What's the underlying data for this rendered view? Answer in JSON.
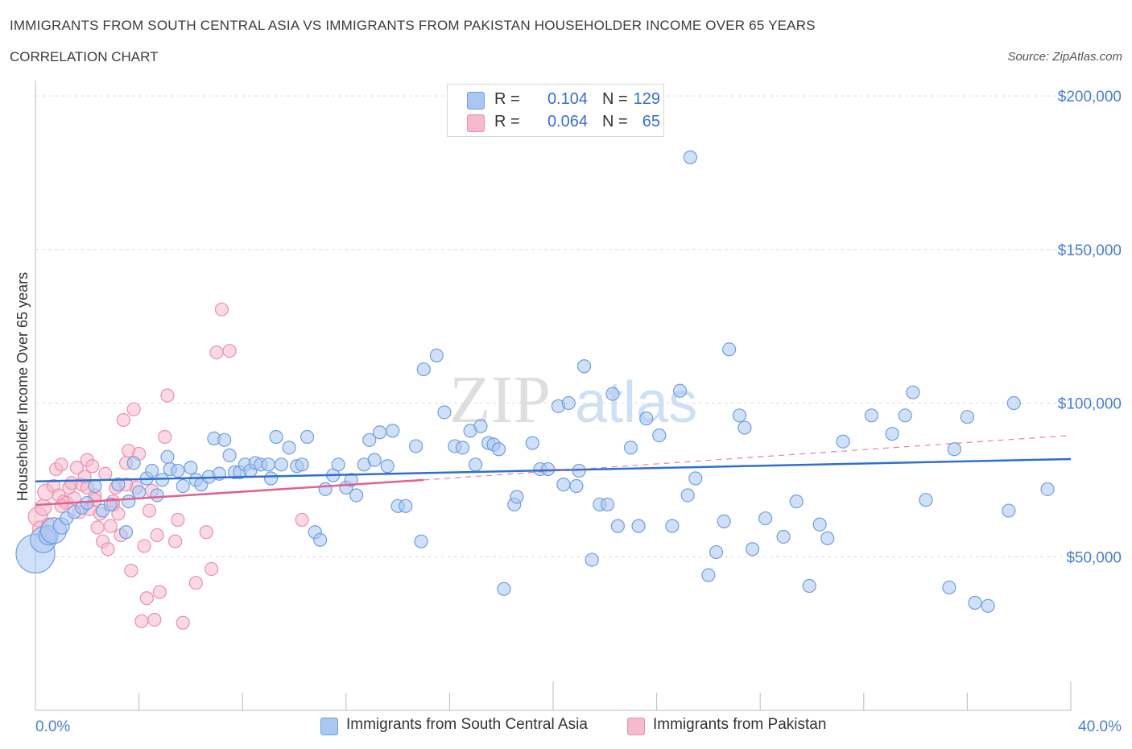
{
  "header": {
    "title": "IMMIGRANTS FROM SOUTH CENTRAL ASIA VS IMMIGRANTS FROM PAKISTAN HOUSEHOLDER INCOME OVER 65 YEARS",
    "subtitle": "CORRELATION CHART",
    "source": "Source: ZipAtlas.com"
  },
  "watermark": "ZIPatlas",
  "legend": {
    "rows": [
      {
        "r_label": "R =",
        "r_value": "0.104",
        "n_label": "N =",
        "n_value": "129",
        "color": "#a9c7f3"
      },
      {
        "r_label": "R =",
        "r_value": "0.064",
        "n_label": "N =",
        "n_value": "65",
        "color": "#f6b9cd"
      }
    ]
  },
  "bottom_legend": [
    {
      "label": "Immigrants from South Central Asia",
      "color": "#a9c7f3"
    },
    {
      "label": "Immigrants from Pakistan",
      "color": "#f6b9cd"
    }
  ],
  "colors": {
    "blue_fill": "#a9c7f3",
    "blue_stroke": "#6f9ee0",
    "blue_line": "#2f6fd0",
    "pink_fill": "#f6b9cd",
    "pink_stroke": "#ec8fae",
    "pink_line": "#e2608f",
    "tick_text": "#4a7fd0",
    "grid": "#dddddd"
  },
  "chart_data": {
    "type": "scatter",
    "title": "IMMIGRANTS FROM SOUTH CENTRAL ASIA VS IMMIGRANTS FROM PAKISTAN HOUSEHOLDER INCOME OVER 65 YEARS",
    "xlabel": "",
    "ylabel": "Householder Income Over 65 years",
    "xlim": [
      0,
      40
    ],
    "ylim": [
      0,
      205000
    ],
    "x_tick_labels": [
      "0.0%",
      "40.0%"
    ],
    "y_ticks": [
      50000,
      100000,
      150000,
      200000
    ],
    "y_tick_labels": [
      "$50,000",
      "$100,000",
      "$150,000",
      "$200,000"
    ],
    "grid": true,
    "legend_position": "top-center",
    "series": [
      {
        "name": "Immigrants from South Central Asia",
        "color": "#a9c7f3",
        "points": [
          [
            0.0,
            51000,
            24
          ],
          [
            0.3,
            55500,
            16
          ],
          [
            0.5,
            57000,
            12
          ],
          [
            0.7,
            58500,
            16
          ],
          [
            1.0,
            60000,
            10
          ],
          [
            1.2,
            62500,
            8
          ],
          [
            1.5,
            64500,
            8
          ],
          [
            1.8,
            66000,
            8
          ],
          [
            2.0,
            67500,
            8
          ],
          [
            2.3,
            73000,
            8
          ],
          [
            2.6,
            65000,
            8
          ],
          [
            2.9,
            67000,
            8
          ],
          [
            3.2,
            73500,
            8
          ],
          [
            3.5,
            58000,
            8
          ],
          [
            3.6,
            68000,
            8
          ],
          [
            3.8,
            80500,
            8
          ],
          [
            4.0,
            71000,
            8
          ],
          [
            4.3,
            75500,
            8
          ],
          [
            4.5,
            78000,
            8
          ],
          [
            4.7,
            70000,
            8
          ],
          [
            4.9,
            75000,
            8
          ],
          [
            5.1,
            82500,
            8
          ],
          [
            5.2,
            78500,
            8
          ],
          [
            5.5,
            78000,
            8
          ],
          [
            5.7,
            73000,
            8
          ],
          [
            6.0,
            79000,
            8
          ],
          [
            6.2,
            75000,
            8
          ],
          [
            6.4,
            73500,
            8
          ],
          [
            6.7,
            76000,
            8
          ],
          [
            6.9,
            88500,
            8
          ],
          [
            7.1,
            77000,
            8
          ],
          [
            7.3,
            88000,
            8
          ],
          [
            7.5,
            83000,
            8
          ],
          [
            7.7,
            77500,
            8
          ],
          [
            7.9,
            77500,
            8
          ],
          [
            8.1,
            80000,
            8
          ],
          [
            8.3,
            78000,
            8
          ],
          [
            8.5,
            80500,
            8
          ],
          [
            8.7,
            80000,
            8
          ],
          [
            9.0,
            80000,
            8
          ],
          [
            9.3,
            89000,
            8
          ],
          [
            9.5,
            80000,
            8
          ],
          [
            9.8,
            85500,
            8
          ],
          [
            10.1,
            79500,
            8
          ],
          [
            10.3,
            80000,
            8
          ],
          [
            10.5,
            89000,
            8
          ],
          [
            10.8,
            58000,
            8
          ],
          [
            11.0,
            55500,
            8
          ],
          [
            11.2,
            72000,
            8
          ],
          [
            11.5,
            76500,
            8
          ],
          [
            11.7,
            80000,
            8
          ],
          [
            12.0,
            72500,
            8
          ],
          [
            12.2,
            75000,
            8
          ],
          [
            12.4,
            70000,
            8
          ],
          [
            12.7,
            80000,
            8
          ],
          [
            12.9,
            88000,
            8
          ],
          [
            13.1,
            81500,
            8
          ],
          [
            13.3,
            90500,
            8
          ],
          [
            13.6,
            79500,
            8
          ],
          [
            13.8,
            91000,
            8
          ],
          [
            14.0,
            66500,
            8
          ],
          [
            14.3,
            66500,
            8
          ],
          [
            14.7,
            86000,
            8
          ],
          [
            14.9,
            55000,
            8
          ],
          [
            15.0,
            111000,
            8
          ],
          [
            15.5,
            115500,
            8
          ],
          [
            15.8,
            97000,
            8
          ],
          [
            16.2,
            86000,
            8
          ],
          [
            16.5,
            85500,
            8
          ],
          [
            16.8,
            91000,
            8
          ],
          [
            17.0,
            80000,
            8
          ],
          [
            17.2,
            92500,
            8
          ],
          [
            17.5,
            87000,
            8
          ],
          [
            17.7,
            86500,
            8
          ],
          [
            17.9,
            85000,
            8
          ],
          [
            18.1,
            39500,
            8
          ],
          [
            18.5,
            67000,
            8
          ],
          [
            18.6,
            69500,
            8
          ],
          [
            19.2,
            87000,
            8
          ],
          [
            19.5,
            78500,
            8
          ],
          [
            19.8,
            78500,
            8
          ],
          [
            20.2,
            99000,
            8
          ],
          [
            20.4,
            73500,
            8
          ],
          [
            20.6,
            100000,
            8
          ],
          [
            20.9,
            73000,
            8
          ],
          [
            21.0,
            78000,
            8
          ],
          [
            21.2,
            112000,
            8
          ],
          [
            21.5,
            49000,
            8
          ],
          [
            21.8,
            67000,
            8
          ],
          [
            22.1,
            67000,
            8
          ],
          [
            22.3,
            103000,
            8
          ],
          [
            22.5,
            60000,
            8
          ],
          [
            23.0,
            85500,
            8
          ],
          [
            23.3,
            60000,
            8
          ],
          [
            23.6,
            95000,
            8
          ],
          [
            24.1,
            89500,
            8
          ],
          [
            24.6,
            60000,
            8
          ],
          [
            24.9,
            104000,
            8
          ],
          [
            25.2,
            70000,
            8
          ],
          [
            25.5,
            75500,
            8
          ],
          [
            25.3,
            180000,
            8
          ],
          [
            26.0,
            44000,
            8
          ],
          [
            26.3,
            51500,
            8
          ],
          [
            26.6,
            61500,
            8
          ],
          [
            26.8,
            117500,
            8
          ],
          [
            27.2,
            96000,
            8
          ],
          [
            27.4,
            92000,
            8
          ],
          [
            27.7,
            52500,
            8
          ],
          [
            28.9,
            56500,
            8
          ],
          [
            29.4,
            68000,
            8
          ],
          [
            29.9,
            40500,
            8
          ],
          [
            30.3,
            60500,
            8
          ],
          [
            31.2,
            87500,
            8
          ],
          [
            32.3,
            96000,
            8
          ],
          [
            33.1,
            90000,
            8
          ],
          [
            33.6,
            96000,
            8
          ],
          [
            33.9,
            103500,
            8
          ],
          [
            35.3,
            40000,
            8
          ],
          [
            35.5,
            85000,
            8
          ],
          [
            36.0,
            95500,
            8
          ],
          [
            36.3,
            35000,
            8
          ],
          [
            36.8,
            34000,
            8
          ],
          [
            37.6,
            65000,
            8
          ],
          [
            37.8,
            100000,
            8
          ],
          [
            39.1,
            72000,
            8
          ],
          [
            28.2,
            62500,
            8
          ],
          [
            30.6,
            56000,
            8
          ],
          [
            34.4,
            68500,
            8
          ],
          [
            9.1,
            75500,
            8
          ]
        ],
        "trend": {
          "x": [
            0,
            40
          ],
          "y": [
            74500,
            81800
          ]
        }
      },
      {
        "name": "Immigrants from Pakistan",
        "color": "#f6b9cd",
        "points": [
          [
            0.1,
            63000,
            12
          ],
          [
            0.2,
            59000,
            10
          ],
          [
            0.3,
            66000,
            10
          ],
          [
            0.4,
            71000,
            10
          ],
          [
            0.5,
            60500,
            8
          ],
          [
            0.6,
            56000,
            8
          ],
          [
            0.7,
            73000,
            8
          ],
          [
            0.8,
            78500,
            8
          ],
          [
            0.9,
            70000,
            8
          ],
          [
            1.0,
            80000,
            8
          ],
          [
            1.1,
            68000,
            8
          ],
          [
            1.2,
            67500,
            8
          ],
          [
            1.3,
            72500,
            8
          ],
          [
            1.4,
            74000,
            8
          ],
          [
            1.5,
            69000,
            8
          ],
          [
            1.6,
            79000,
            8
          ],
          [
            1.7,
            64500,
            8
          ],
          [
            1.8,
            73500,
            8
          ],
          [
            1.9,
            76000,
            8
          ],
          [
            2.0,
            81500,
            8
          ],
          [
            2.1,
            65500,
            8
          ],
          [
            2.2,
            79500,
            8
          ],
          [
            2.3,
            70000,
            8
          ],
          [
            2.4,
            59500,
            8
          ],
          [
            2.5,
            64000,
            8
          ],
          [
            2.6,
            55000,
            8
          ],
          [
            2.7,
            77000,
            8
          ],
          [
            2.8,
            52500,
            8
          ],
          [
            2.9,
            60000,
            8
          ],
          [
            3.0,
            68000,
            8
          ],
          [
            3.1,
            72500,
            8
          ],
          [
            3.2,
            64000,
            8
          ],
          [
            3.3,
            57000,
            8
          ],
          [
            3.4,
            94500,
            8
          ],
          [
            3.5,
            80500,
            8
          ],
          [
            3.6,
            84500,
            8
          ],
          [
            3.7,
            45500,
            8
          ],
          [
            3.8,
            98000,
            8
          ],
          [
            3.9,
            72500,
            8
          ],
          [
            4.0,
            83500,
            8
          ],
          [
            4.1,
            29000,
            8
          ],
          [
            4.2,
            53500,
            8
          ],
          [
            4.3,
            36500,
            8
          ],
          [
            4.4,
            65000,
            8
          ],
          [
            4.5,
            71500,
            8
          ],
          [
            4.6,
            29500,
            8
          ],
          [
            4.7,
            57000,
            8
          ],
          [
            4.8,
            38500,
            8
          ],
          [
            5.0,
            89000,
            8
          ],
          [
            5.1,
            102500,
            8
          ],
          [
            5.4,
            55000,
            8
          ],
          [
            5.5,
            62000,
            8
          ],
          [
            5.7,
            28500,
            8
          ],
          [
            6.2,
            41500,
            8
          ],
          [
            6.6,
            58000,
            8
          ],
          [
            6.8,
            46000,
            8
          ],
          [
            7.0,
            116500,
            8
          ],
          [
            7.2,
            130500,
            8
          ],
          [
            7.5,
            117000,
            8
          ],
          [
            10.3,
            62000,
            8
          ],
          [
            2.3,
            68500,
            8
          ],
          [
            1.0,
            66500,
            8
          ],
          [
            3.0,
            67000,
            8
          ],
          [
            2.0,
            72500,
            8
          ],
          [
            3.5,
            73500,
            8
          ]
        ],
        "trend": {
          "x": [
            0,
            15
          ],
          "y": [
            66800,
            75000
          ]
        },
        "trend_dashed": {
          "x": [
            15,
            40
          ],
          "y": [
            75000,
            89500
          ]
        }
      }
    ]
  }
}
